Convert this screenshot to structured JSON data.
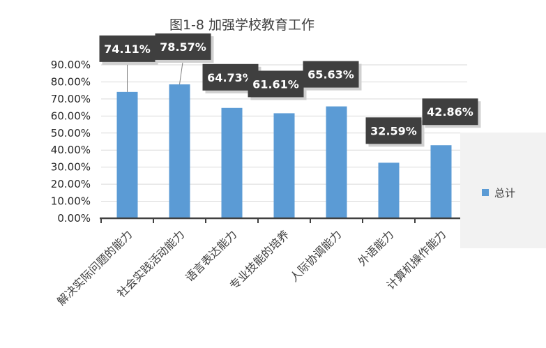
{
  "chart_data": {
    "type": "bar",
    "title": "图1-8 加强学校教育工作",
    "xlabel": "",
    "ylabel": "",
    "categories": [
      "解决实际问题的能力",
      "社会实践活动能力",
      "语言表达能力",
      "专业技能的培养",
      "人际协调能力",
      "外语能力",
      "计算机操作能力"
    ],
    "series": [
      {
        "name": "总计",
        "values": [
          74.11,
          78.57,
          64.73,
          61.61,
          65.63,
          32.59,
          42.86
        ],
        "labels": [
          "74.11%",
          "78.57%",
          "64.73%",
          "61.61%",
          "65.63%",
          "32.59%",
          "42.86%"
        ]
      }
    ],
    "yticks": [
      "0.00%",
      "10.00%",
      "20.00%",
      "30.00%",
      "40.00%",
      "50.00%",
      "60.00%",
      "70.00%",
      "80.00%",
      "90.00%"
    ],
    "ylim": [
      0,
      90
    ],
    "grid": true,
    "legend_position": "right",
    "bar_color": "#5b9bd5",
    "label_bg_color": "#3f3f3f"
  }
}
